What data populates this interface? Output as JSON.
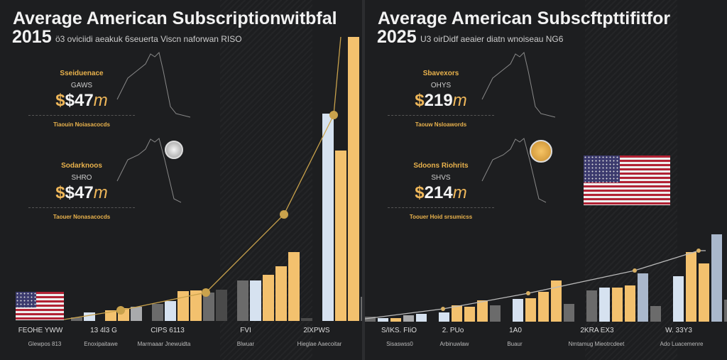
{
  "colors": {
    "gold": "#f3c16e",
    "lightblue": "#d6e2f0",
    "steel": "#aab8cc",
    "gray": "#6b6b6b",
    "lightgray": "#a9aaac",
    "dark": "#4a4a4a",
    "line": "#c9a24c"
  },
  "panels": [
    {
      "title": "Average American Subscriptionwitbfal",
      "year": "2015",
      "subtitle": "ö3 oviciidi aeakuk 6seuerta Viscn naforwan RISO",
      "stats": [
        {
          "label": "Sseiduenace",
          "label2": "GAWS",
          "value": "$47",
          "prefix": "$",
          "suffix": "m",
          "foot": "Tiaouin Noiasacocds"
        },
        {
          "label": "Sodarknoos",
          "label2": "SHRO",
          "value": "$47",
          "prefix": "$",
          "suffix": "m",
          "foot": "Taouer Nonasacocds"
        }
      ],
      "coin": "silver",
      "categories": [
        "FEOHE YWW",
        "13 4l3 G",
        "CIPS 6113",
        "FVI",
        "2lXPWS"
      ],
      "subcategories": [
        "Glewpos 813",
        "Enoxipaitawe",
        "Marmaaar Jnewuidta",
        "Blwuar",
        "Hieglae Aaecoitar"
      ]
    },
    {
      "title": "Average American Subscftpttifitfor",
      "year": "2025",
      "subtitle": "U3 oirDidf aeaier diatn wnoiseau NG6",
      "stats": [
        {
          "label": "Sbavexors",
          "label2": "OHYS",
          "value": "219",
          "prefix": "$",
          "suffix": "m",
          "foot": "Taouw Nsloawords"
        },
        {
          "label": "Sdoons Riohrits",
          "label2": "SHVS",
          "value": "214",
          "prefix": "$",
          "suffix": "m",
          "foot": "Toouer Hoid srsumicss"
        }
      ],
      "coin": "gold",
      "categories": [
        "S/IKS. FIiO",
        "2. PUo",
        "1A0",
        "2KRA EX3",
        "W. 33Y3"
      ],
      "subcategories": [
        "Sisaswss0",
        "Arbinuwlaw",
        "Buaur",
        "Nmtamug Mieotrcdeet",
        "Ado Luacemenre"
      ]
    }
  ],
  "chart_data": [
    {
      "type": "bar",
      "title": "Average American Subscriptionwitbfal 2015",
      "categories": [
        "FEOHE YWW",
        "13 4l3 G",
        "CIPS 6113",
        "FVI",
        "2lXPWS"
      ],
      "bars": [
        {
          "group": 0,
          "color": "gray",
          "value": 5
        },
        {
          "group": 0,
          "color": "lightblue",
          "value": 12
        },
        {
          "group": 1,
          "color": "gold",
          "value": 15
        },
        {
          "group": 1,
          "color": "gold",
          "value": 18
        },
        {
          "group": 1,
          "color": "lightgray",
          "value": 20
        },
        {
          "group": 2,
          "color": "gray",
          "value": 24
        },
        {
          "group": 2,
          "color": "lightblue",
          "value": 28
        },
        {
          "group": 2,
          "color": "gold",
          "value": 42
        },
        {
          "group": 2,
          "color": "gold",
          "value": 43
        },
        {
          "group": 2,
          "color": "gray",
          "value": 40
        },
        {
          "group": 2,
          "color": "dark",
          "value": 44
        },
        {
          "group": 3,
          "color": "gray",
          "value": 57
        },
        {
          "group": 3,
          "color": "lightblue",
          "value": 57
        },
        {
          "group": 3,
          "color": "gold",
          "value": 65
        },
        {
          "group": 3,
          "color": "gold",
          "value": 77
        },
        {
          "group": 3,
          "color": "gold",
          "value": 97
        },
        {
          "group": 3,
          "color": "dark",
          "value": 4
        },
        {
          "group": 4,
          "color": "lightblue",
          "value": 292
        },
        {
          "group": 4,
          "color": "gold",
          "value": 240
        },
        {
          "group": 4,
          "color": "gold",
          "value": 400
        },
        {
          "group": 4,
          "color": "gray",
          "value": 34
        }
      ],
      "trend": [
        [
          0,
          2
        ],
        [
          1,
          15
        ],
        [
          2,
          40
        ],
        [
          3,
          150
        ],
        [
          4,
          290
        ],
        [
          5,
          400
        ]
      ]
    },
    {
      "type": "bar",
      "title": "Average American Subscftpttifitfor 2025",
      "categories": [
        "S/IKS. FIiO",
        "2. PUo",
        "1A0",
        "2KRA EX3",
        "W. 33Y3"
      ],
      "bars": [
        {
          "group": 0,
          "color": "gray",
          "value": 7
        },
        {
          "group": 0,
          "color": "lightblue",
          "value": 5
        },
        {
          "group": 0,
          "color": "gold",
          "value": 5
        },
        {
          "group": 0,
          "color": "lightgray",
          "value": 9
        },
        {
          "group": 0,
          "color": "lightblue",
          "value": 11
        },
        {
          "group": 1,
          "color": "lightblue",
          "value": 13
        },
        {
          "group": 1,
          "color": "gold",
          "value": 23
        },
        {
          "group": 1,
          "color": "gold",
          "value": 21
        },
        {
          "group": 1,
          "color": "gold",
          "value": 30
        },
        {
          "group": 1,
          "color": "gray",
          "value": 23
        },
        {
          "group": 2,
          "color": "lightblue",
          "value": 32
        },
        {
          "group": 2,
          "color": "gold",
          "value": 33
        },
        {
          "group": 2,
          "color": "gold",
          "value": 42
        },
        {
          "group": 2,
          "color": "gold",
          "value": 58
        },
        {
          "group": 2,
          "color": "gray",
          "value": 25
        },
        {
          "group": 3,
          "color": "gray",
          "value": 44
        },
        {
          "group": 3,
          "color": "lightblue",
          "value": 48
        },
        {
          "group": 3,
          "color": "gold",
          "value": 48
        },
        {
          "group": 3,
          "color": "gold",
          "value": 51
        },
        {
          "group": 3,
          "color": "steel",
          "value": 68
        },
        {
          "group": 3,
          "color": "gray",
          "value": 22
        },
        {
          "group": 4,
          "color": "lightblue",
          "value": 64
        },
        {
          "group": 4,
          "color": "gold",
          "value": 98
        },
        {
          "group": 4,
          "color": "gold",
          "value": 82
        },
        {
          "group": 4,
          "color": "steel",
          "value": 123
        },
        {
          "group": 4,
          "color": "gray",
          "value": 31
        }
      ],
      "trend": [
        [
          0,
          4
        ],
        [
          1,
          18
        ],
        [
          2,
          40
        ],
        [
          3,
          72
        ],
        [
          4,
          100
        ],
        [
          5,
          100
        ]
      ]
    }
  ]
}
